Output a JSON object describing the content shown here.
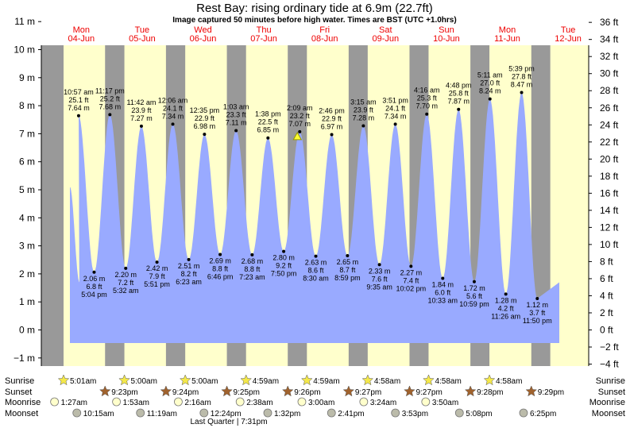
{
  "page": {
    "title": "Rest Bay: rising  ordinary tide at 6.9m (22.7ft)",
    "subtitle": "Image captured 50 minutes before high water. Times are BST (UTC +1.0hrs)"
  },
  "colors": {
    "night": "#999999",
    "day": "#ffffcc",
    "tide_fill": "#99aaff",
    "day_label": "#ee0000",
    "marker": "#ffff33"
  },
  "chart_data": {
    "type": "area",
    "title": "Rest Bay: rising  ordinary tide at 6.9m (22.7ft)",
    "ylim_m": [
      -1.5,
      11.5
    ],
    "ylim_ft": [
      -5,
      37.7
    ],
    "y_ticks_m": [
      "11 m",
      "10 m",
      "9 m",
      "8 m",
      "7 m",
      "6 m",
      "5 m",
      "4 m",
      "3 m",
      "2 m",
      "1 m",
      "0 m",
      "−1 m"
    ],
    "y_ticks_ft": [
      "36 ft",
      "34 ft",
      "32 ft",
      "30 ft",
      "28 ft",
      "26 ft",
      "24 ft",
      "22 ft",
      "20 ft",
      "18 ft",
      "16 ft",
      "14 ft",
      "12 ft",
      "10 ft",
      "8 ft",
      "6 ft",
      "4 ft",
      "2 ft",
      "0 ft",
      "−2 ft",
      "−4 ft"
    ],
    "days": [
      {
        "dow": "Mon",
        "date": "04-Jun"
      },
      {
        "dow": "Tue",
        "date": "05-Jun"
      },
      {
        "dow": "Wed",
        "date": "06-Jun"
      },
      {
        "dow": "Thu",
        "date": "07-Jun"
      },
      {
        "dow": "Fri",
        "date": "08-Jun"
      },
      {
        "dow": "Sat",
        "date": "09-Jun"
      },
      {
        "dow": "Sun",
        "date": "10-Jun"
      },
      {
        "dow": "Mon",
        "date": "11-Jun"
      },
      {
        "dow": "Tue",
        "date": "12-Jun"
      }
    ],
    "tides": [
      {
        "type": "high",
        "day": 0,
        "time": "10:57 am",
        "ft": "25.1 ft",
        "m": 7.64
      },
      {
        "type": "low",
        "day": 0,
        "time": "5:04 pm",
        "ft": "6.8 ft",
        "m": 2.06
      },
      {
        "type": "high",
        "day": 0,
        "time": "11:17 pm",
        "ft": "25.2 ft",
        "m": 7.68
      },
      {
        "type": "low",
        "day": 1,
        "time": "5:32 am",
        "ft": "7.2 ft",
        "m": 2.2
      },
      {
        "type": "high",
        "day": 1,
        "time": "11:42 am",
        "ft": "23.9 ft",
        "m": 7.27
      },
      {
        "type": "low",
        "day": 1,
        "time": "5:51 pm",
        "ft": "7.9 ft",
        "m": 2.42
      },
      {
        "type": "high",
        "day": 2,
        "time": "12:06 am",
        "ft": "24.1 ft",
        "m": 7.34
      },
      {
        "type": "low",
        "day": 2,
        "time": "6:23 am",
        "ft": "8.2 ft",
        "m": 2.51
      },
      {
        "type": "high",
        "day": 2,
        "time": "12:35 pm",
        "ft": "22.9 ft",
        "m": 6.98
      },
      {
        "type": "low",
        "day": 2,
        "time": "6:46 pm",
        "ft": "8.8 ft",
        "m": 2.69
      },
      {
        "type": "high",
        "day": 3,
        "time": "1:03 am",
        "ft": "23.3 ft",
        "m": 7.11
      },
      {
        "type": "low",
        "day": 3,
        "time": "7:23 am",
        "ft": "8.8 ft",
        "m": 2.68
      },
      {
        "type": "high",
        "day": 3,
        "time": "1:38 pm",
        "ft": "22.5 ft",
        "m": 6.85
      },
      {
        "type": "low",
        "day": 3,
        "time": "7:50 pm",
        "ft": "9.2 ft",
        "m": 2.8
      },
      {
        "type": "high",
        "day": 4,
        "time": "2:09 am",
        "ft": "23.2 ft",
        "m": 7.07
      },
      {
        "type": "low",
        "day": 4,
        "time": "8:30 am",
        "ft": "8.6 ft",
        "m": 2.63
      },
      {
        "type": "high",
        "day": 4,
        "time": "2:46 pm",
        "ft": "22.9 ft",
        "m": 6.97
      },
      {
        "type": "low",
        "day": 4,
        "time": "8:59 pm",
        "ft": "8.7 ft",
        "m": 2.65
      },
      {
        "type": "high",
        "day": 5,
        "time": "3:15 am",
        "ft": "23.9 ft",
        "m": 7.28
      },
      {
        "type": "low",
        "day": 5,
        "time": "9:35 am",
        "ft": "7.6 ft",
        "m": 2.33
      },
      {
        "type": "high",
        "day": 5,
        "time": "3:51 pm",
        "ft": "24.1 ft",
        "m": 7.34
      },
      {
        "type": "low",
        "day": 5,
        "time": "10:02 pm",
        "ft": "7.4 ft",
        "m": 2.27
      },
      {
        "type": "high",
        "day": 6,
        "time": "4:16 am",
        "ft": "25.3 ft",
        "m": 7.7
      },
      {
        "type": "low",
        "day": 6,
        "time": "10:33 am",
        "ft": "6.0 ft",
        "m": 1.84
      },
      {
        "type": "high",
        "day": 6,
        "time": "4:48 pm",
        "ft": "25.8 ft",
        "m": 7.87
      },
      {
        "type": "low",
        "day": 6,
        "time": "10:59 pm",
        "ft": "5.6 ft",
        "m": 1.72
      },
      {
        "type": "high",
        "day": 7,
        "time": "5:11 am",
        "ft": "27.0 ft",
        "m": 8.24
      },
      {
        "type": "low",
        "day": 7,
        "time": "11:26 am",
        "ft": "4.2 ft",
        "m": 1.28
      },
      {
        "type": "high",
        "day": 7,
        "time": "5:39 pm",
        "ft": "27.8 ft",
        "m": 8.47
      },
      {
        "type": "low",
        "day": 7,
        "time": "11:50 pm",
        "ft": "3.7 ft",
        "m": 1.12
      }
    ],
    "current": {
      "m": 6.9,
      "ft": 22.7,
      "marker": "triangle-marker"
    }
  },
  "astro": {
    "labels": {
      "sunrise": "Sunrise",
      "sunset": "Sunset",
      "moonrise": "Moonrise",
      "moonset": "Moonset"
    },
    "sunrise": [
      "5:01am",
      "5:00am",
      "5:00am",
      "4:59am",
      "4:59am",
      "4:58am",
      "4:58am",
      "4:58am"
    ],
    "sunset": [
      "9:23pm",
      "9:24pm",
      "9:25pm",
      "9:26pm",
      "9:27pm",
      "9:27pm",
      "9:28pm",
      "9:29pm"
    ],
    "moonrise": [
      "1:27am",
      "1:53am",
      "2:16am",
      "2:38am",
      "3:00am",
      "3:24am",
      "3:50am"
    ],
    "moonset": [
      "10:15am",
      "11:19am",
      "12:24pm",
      "1:32pm",
      "2:41pm",
      "3:53pm",
      "5:08pm",
      "6:25pm"
    ],
    "moon_phase": "Last Quarter | 7:31pm",
    "icons": {
      "sunrise": "sun-star-icon",
      "sunset": "sunset-star-icon",
      "moonrise": "moon-icon",
      "moonset": "moon-icon"
    }
  }
}
